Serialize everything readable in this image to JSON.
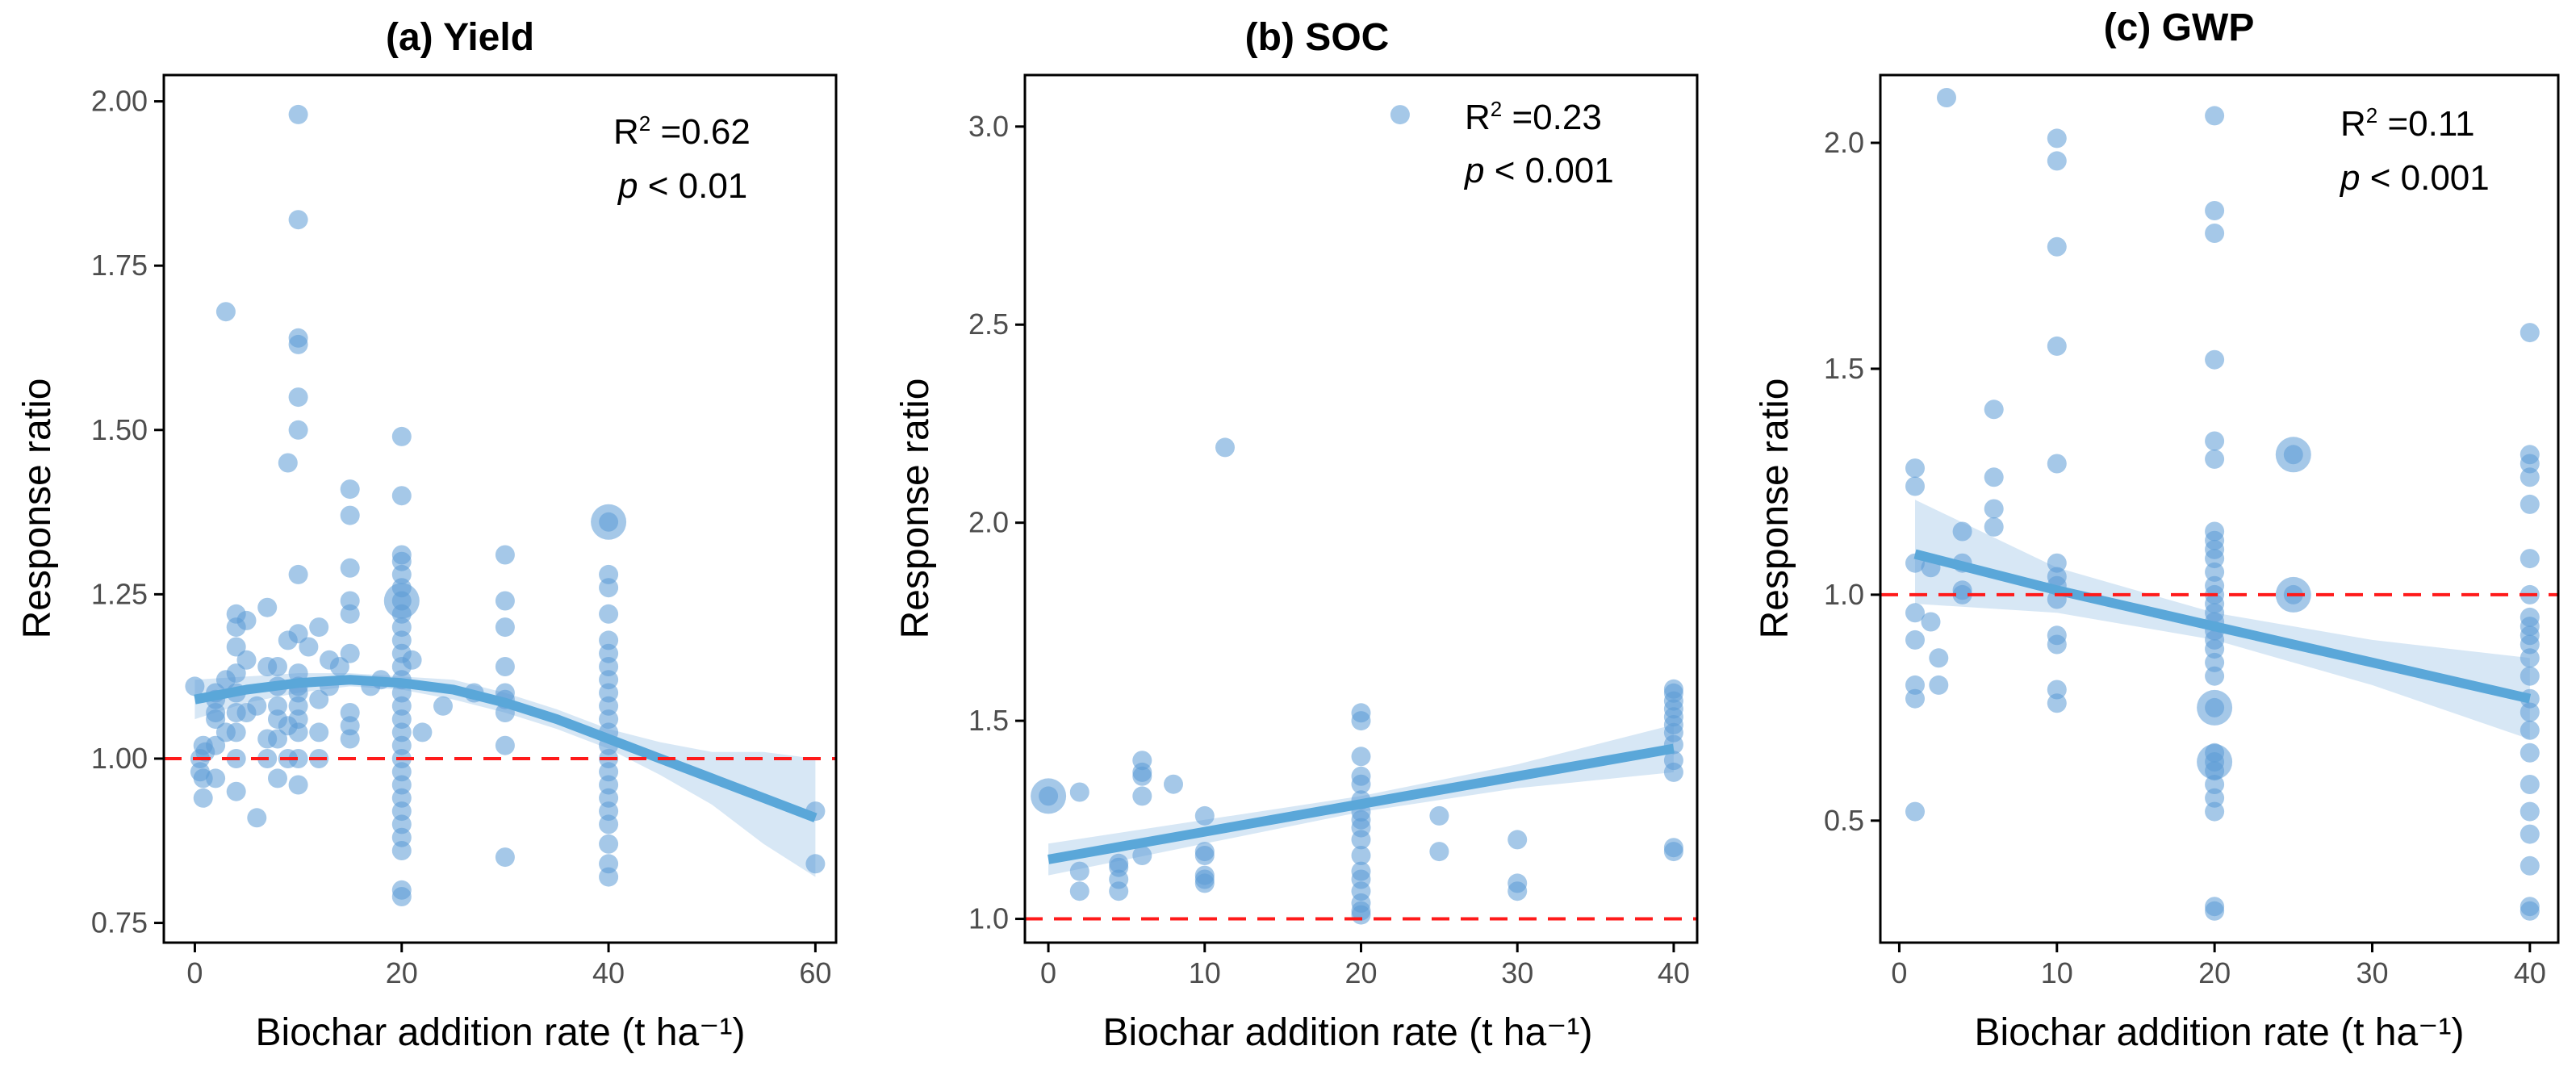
{
  "colors": {
    "point": "#5b9bd5",
    "fit_line": "#5aa7d9",
    "ci_band": "#bcd7ee",
    "reference_line": "#ff1a1a",
    "frame": "#000000"
  },
  "chart_data": [
    {
      "type": "scatter",
      "title": "(a) Yield",
      "xlabel": "Biochar addition rate (t ha⁻¹)",
      "ylabel": "Response ratio",
      "xlim": [
        -3,
        62
      ],
      "ylim": [
        0.72,
        2.04
      ],
      "xticks": [
        0,
        20,
        40,
        60
      ],
      "xtick_labels": [
        "0",
        "20",
        "40",
        "60"
      ],
      "yticks": [
        0.75,
        1.0,
        1.25,
        1.5,
        1.75,
        2.0
      ],
      "ytick_labels": [
        "0.75",
        "1.00",
        "1.25",
        "1.50",
        "1.75",
        "2.00"
      ],
      "reference_line": 1.0,
      "stats": {
        "r2_prefix": "R",
        "r2_sup": "2",
        "r2_value": " =0.62",
        "p_symbol": "p",
        "p_value": " < 0.01"
      },
      "fit": {
        "x": [
          0,
          5,
          10,
          15,
          20,
          25,
          30,
          35,
          40,
          45,
          50,
          55,
          60
        ],
        "y": [
          1.09,
          1.105,
          1.115,
          1.12,
          1.115,
          1.105,
          1.085,
          1.06,
          1.03,
          1.0,
          0.97,
          0.94,
          0.91
        ],
        "ci_low": [
          1.06,
          1.085,
          1.1,
          1.11,
          1.105,
          1.09,
          1.07,
          1.045,
          1.015,
          0.975,
          0.93,
          0.87,
          0.82
        ],
        "ci_high": [
          1.12,
          1.125,
          1.13,
          1.13,
          1.125,
          1.12,
          1.1,
          1.075,
          1.045,
          1.025,
          1.01,
          1.01,
          1.0
        ]
      },
      "points": [
        [
          0,
          1.11
        ],
        [
          0.5,
          1.0
        ],
        [
          0.5,
          0.98
        ],
        [
          0.8,
          1.02
        ],
        [
          0.8,
          0.97
        ],
        [
          0.8,
          0.94
        ],
        [
          1,
          1.01
        ],
        [
          2,
          1.1
        ],
        [
          2,
          1.07
        ],
        [
          2,
          1.09
        ],
        [
          2,
          1.06
        ],
        [
          2,
          1.02
        ],
        [
          2,
          0.97
        ],
        [
          3,
          1.68
        ],
        [
          3,
          1.12
        ],
        [
          3,
          1.04
        ],
        [
          4,
          1.22
        ],
        [
          4,
          1.2
        ],
        [
          4,
          1.17
        ],
        [
          4,
          1.13
        ],
        [
          4,
          1.1
        ],
        [
          4,
          1.07
        ],
        [
          4,
          1.04
        ],
        [
          4,
          1.0
        ],
        [
          4,
          0.95
        ],
        [
          5,
          1.21
        ],
        [
          5,
          1.15
        ],
        [
          5,
          1.07
        ],
        [
          6,
          0.91
        ],
        [
          6,
          1.08
        ],
        [
          7,
          1.23
        ],
        [
          7,
          1.14
        ],
        [
          7,
          1.03
        ],
        [
          7,
          1.0
        ],
        [
          8,
          1.14
        ],
        [
          8,
          1.11
        ],
        [
          8,
          1.08
        ],
        [
          8,
          1.06
        ],
        [
          8,
          1.03
        ],
        [
          8,
          0.97
        ],
        [
          9,
          1.45
        ],
        [
          9,
          1.18
        ],
        [
          9,
          1.05
        ],
        [
          9,
          1.0
        ],
        [
          10,
          1.98
        ],
        [
          10,
          1.82
        ],
        [
          10,
          1.64
        ],
        [
          10,
          1.63
        ],
        [
          10,
          1.55
        ],
        [
          10,
          1.5
        ],
        [
          10,
          1.28
        ],
        [
          10,
          1.19
        ],
        [
          10,
          1.13
        ],
        [
          10,
          1.11
        ],
        [
          10,
          1.1
        ],
        [
          10,
          1.08
        ],
        [
          10,
          1.06
        ],
        [
          10,
          1.04
        ],
        [
          10,
          1.0
        ],
        [
          10,
          0.96
        ],
        [
          11,
          1.17
        ],
        [
          12,
          1.2
        ],
        [
          12,
          1.09
        ],
        [
          12,
          1.04
        ],
        [
          12,
          1.0
        ],
        [
          13,
          1.15
        ],
        [
          13,
          1.11
        ],
        [
          14,
          1.14
        ],
        [
          15,
          1.41
        ],
        [
          15,
          1.37
        ],
        [
          15,
          1.29
        ],
        [
          15,
          1.24
        ],
        [
          15,
          1.22
        ],
        [
          15,
          1.16
        ],
        [
          15,
          1.07
        ],
        [
          15,
          1.05
        ],
        [
          15,
          1.03
        ],
        [
          17,
          1.11
        ],
        [
          18,
          1.12
        ],
        [
          20,
          1.49
        ],
        [
          20,
          1.4
        ],
        [
          20,
          1.31
        ],
        [
          20,
          1.3
        ],
        [
          20,
          1.28
        ],
        [
          20,
          1.26
        ],
        [
          20,
          1.24
        ],
        [
          20,
          1.22
        ],
        [
          20,
          1.2
        ],
        [
          20,
          1.18
        ],
        [
          20,
          1.16
        ],
        [
          20,
          1.14
        ],
        [
          20,
          1.12
        ],
        [
          20,
          1.1
        ],
        [
          20,
          1.08
        ],
        [
          20,
          1.06
        ],
        [
          20,
          1.04
        ],
        [
          20,
          1.02
        ],
        [
          20,
          1.0
        ],
        [
          20,
          0.98
        ],
        [
          20,
          0.96
        ],
        [
          20,
          0.94
        ],
        [
          20,
          0.92
        ],
        [
          20,
          0.9
        ],
        [
          20,
          0.88
        ],
        [
          20,
          0.86
        ],
        [
          20,
          0.8
        ],
        [
          20,
          0.79
        ],
        [
          21,
          1.15
        ],
        [
          22,
          1.04
        ],
        [
          24,
          1.08
        ],
        [
          27,
          1.1
        ],
        [
          30,
          1.31
        ],
        [
          30,
          1.24
        ],
        [
          30,
          1.2
        ],
        [
          30,
          1.14
        ],
        [
          30,
          1.1
        ],
        [
          30,
          1.09
        ],
        [
          30,
          1.07
        ],
        [
          30,
          1.02
        ],
        [
          30,
          0.85
        ],
        [
          40,
          1.36
        ],
        [
          40,
          1.28
        ],
        [
          40,
          1.26
        ],
        [
          40,
          1.22
        ],
        [
          40,
          1.18
        ],
        [
          40,
          1.16
        ],
        [
          40,
          1.14
        ],
        [
          40,
          1.12
        ],
        [
          40,
          1.1
        ],
        [
          40,
          1.08
        ],
        [
          40,
          1.06
        ],
        [
          40,
          1.04
        ],
        [
          40,
          1.02
        ],
        [
          40,
          1.0
        ],
        [
          40,
          0.98
        ],
        [
          40,
          0.96
        ],
        [
          40,
          0.94
        ],
        [
          40,
          0.92
        ],
        [
          40,
          0.9
        ],
        [
          40,
          0.87
        ],
        [
          40,
          0.84
        ],
        [
          40,
          0.82
        ],
        [
          60,
          0.92
        ],
        [
          60,
          0.84
        ]
      ],
      "big_points": [
        [
          20,
          1.24
        ],
        [
          40,
          1.36
        ]
      ]
    },
    {
      "type": "scatter",
      "title": "(b) SOC",
      "xlabel": "Biochar addition rate (t ha⁻¹)",
      "ylabel": "Response ratio",
      "xlim": [
        -1.5,
        41.5
      ],
      "ylim": [
        0.94,
        3.13
      ],
      "xticks": [
        0,
        10,
        20,
        30,
        40
      ],
      "xtick_labels": [
        "0",
        "10",
        "20",
        "30",
        "40"
      ],
      "yticks": [
        1.0,
        1.5,
        2.0,
        2.5,
        3.0
      ],
      "ytick_labels": [
        "1.0",
        "1.5",
        "2.0",
        "2.5",
        "3.0"
      ],
      "reference_line": 1.0,
      "stats": {
        "r2_prefix": "R",
        "r2_sup": "2",
        "r2_value": " =0.23",
        "p_symbol": "p",
        "p_value": " < 0.001"
      },
      "fit": {
        "x": [
          0,
          10,
          20,
          30,
          40
        ],
        "y": [
          1.15,
          1.22,
          1.29,
          1.36,
          1.43
        ],
        "ci_low": [
          1.11,
          1.19,
          1.27,
          1.33,
          1.37
        ],
        "ci_high": [
          1.19,
          1.25,
          1.31,
          1.39,
          1.49
        ]
      },
      "points": [
        [
          0,
          1.31
        ],
        [
          2,
          1.32
        ],
        [
          2,
          1.12
        ],
        [
          2,
          1.07
        ],
        [
          4.5,
          1.14
        ],
        [
          4.5,
          1.13
        ],
        [
          4.5,
          1.1
        ],
        [
          4.5,
          1.07
        ],
        [
          6,
          1.4
        ],
        [
          6,
          1.37
        ],
        [
          6,
          1.36
        ],
        [
          6,
          1.31
        ],
        [
          6,
          1.16
        ],
        [
          8,
          1.34
        ],
        [
          10,
          1.26
        ],
        [
          10,
          1.17
        ],
        [
          10,
          1.16
        ],
        [
          10,
          1.11
        ],
        [
          10,
          1.1
        ],
        [
          10,
          1.09
        ],
        [
          11.3,
          2.19
        ],
        [
          20,
          1.52
        ],
        [
          20,
          1.5
        ],
        [
          20,
          1.41
        ],
        [
          20,
          1.36
        ],
        [
          20,
          1.34
        ],
        [
          20,
          1.3
        ],
        [
          20,
          1.27
        ],
        [
          20,
          1.25
        ],
        [
          20,
          1.23
        ],
        [
          20,
          1.2
        ],
        [
          20,
          1.16
        ],
        [
          20,
          1.12
        ],
        [
          20,
          1.1
        ],
        [
          20,
          1.07
        ],
        [
          20,
          1.04
        ],
        [
          20,
          1.02
        ],
        [
          20,
          1.01
        ],
        [
          22.5,
          3.03
        ],
        [
          25,
          1.26
        ],
        [
          25,
          1.17
        ],
        [
          30,
          1.2
        ],
        [
          30,
          1.09
        ],
        [
          30,
          1.07
        ],
        [
          40,
          1.58
        ],
        [
          40,
          1.57
        ],
        [
          40,
          1.55
        ],
        [
          40,
          1.53
        ],
        [
          40,
          1.51
        ],
        [
          40,
          1.49
        ],
        [
          40,
          1.47
        ],
        [
          40,
          1.44
        ],
        [
          40,
          1.4
        ],
        [
          40,
          1.37
        ],
        [
          40,
          1.18
        ],
        [
          40,
          1.17
        ]
      ],
      "big_points": [
        [
          0,
          1.31
        ]
      ]
    },
    {
      "type": "scatter",
      "title": "(c) GWP",
      "xlabel": "Biochar addition rate (t ha⁻¹)",
      "ylabel": "Response ratio",
      "xlim": [
        -1.2,
        41.8
      ],
      "ylim": [
        0.23,
        2.15
      ],
      "xticks": [
        0,
        10,
        20,
        30,
        40
      ],
      "xtick_labels": [
        "0",
        "10",
        "20",
        "30",
        "40"
      ],
      "yticks": [
        0.5,
        1.0,
        1.5,
        2.0
      ],
      "ytick_labels": [
        "0.5",
        "1.0",
        "1.5",
        "2.0"
      ],
      "reference_line": 1.0,
      "stats": {
        "r2_prefix": "R",
        "r2_sup": "2",
        "r2_value": " =0.11",
        "p_symbol": "p",
        "p_value": " < 0.001"
      },
      "fit": {
        "x": [
          1,
          10,
          20,
          30,
          40
        ],
        "y": [
          1.09,
          1.01,
          0.93,
          0.85,
          0.77
        ],
        "ci_low": [
          0.98,
          0.96,
          0.9,
          0.8,
          0.68
        ],
        "ci_high": [
          1.21,
          1.06,
          0.96,
          0.9,
          0.86
        ]
      },
      "points": [
        [
          1,
          1.28
        ],
        [
          1,
          1.24
        ],
        [
          1,
          1.07
        ],
        [
          1,
          0.96
        ],
        [
          1,
          0.9
        ],
        [
          1,
          0.8
        ],
        [
          1,
          0.77
        ],
        [
          1,
          0.52
        ],
        [
          2,
          0.94
        ],
        [
          2,
          1.06
        ],
        [
          2.5,
          0.86
        ],
        [
          2.5,
          0.8
        ],
        [
          3,
          2.1
        ],
        [
          4,
          1.14
        ],
        [
          4,
          1.07
        ],
        [
          4,
          1.0
        ],
        [
          4,
          1.01
        ],
        [
          6,
          1.41
        ],
        [
          6,
          1.26
        ],
        [
          6,
          1.19
        ],
        [
          6,
          1.15
        ],
        [
          10,
          2.01
        ],
        [
          10,
          1.96
        ],
        [
          10,
          1.77
        ],
        [
          10,
          1.55
        ],
        [
          10,
          1.29
        ],
        [
          10,
          1.07
        ],
        [
          10,
          1.04
        ],
        [
          10,
          1.02
        ],
        [
          10,
          0.99
        ],
        [
          10,
          0.91
        ],
        [
          10,
          0.89
        ],
        [
          10,
          0.79
        ],
        [
          10,
          0.76
        ],
        [
          20,
          2.06
        ],
        [
          20,
          1.85
        ],
        [
          20,
          1.8
        ],
        [
          20,
          1.52
        ],
        [
          20,
          1.34
        ],
        [
          20,
          1.3
        ],
        [
          20,
          1.14
        ],
        [
          20,
          1.12
        ],
        [
          20,
          1.1
        ],
        [
          20,
          1.08
        ],
        [
          20,
          1.05
        ],
        [
          20,
          1.02
        ],
        [
          20,
          1.0
        ],
        [
          20,
          0.98
        ],
        [
          20,
          0.96
        ],
        [
          20,
          0.94
        ],
        [
          20,
          0.92
        ],
        [
          20,
          0.9
        ],
        [
          20,
          0.88
        ],
        [
          20,
          0.85
        ],
        [
          20,
          0.82
        ],
        [
          20,
          0.75
        ],
        [
          20,
          0.65
        ],
        [
          20,
          0.63
        ],
        [
          20,
          0.61
        ],
        [
          20,
          0.58
        ],
        [
          20,
          0.55
        ],
        [
          20,
          0.52
        ],
        [
          20,
          0.31
        ],
        [
          20,
          0.3
        ],
        [
          25,
          1.31
        ],
        [
          25,
          1.0
        ],
        [
          40,
          1.58
        ],
        [
          40,
          1.31
        ],
        [
          40,
          1.29
        ],
        [
          40,
          1.26
        ],
        [
          40,
          1.2
        ],
        [
          40,
          1.08
        ],
        [
          40,
          1.0
        ],
        [
          40,
          0.95
        ],
        [
          40,
          0.93
        ],
        [
          40,
          0.91
        ],
        [
          40,
          0.89
        ],
        [
          40,
          0.86
        ],
        [
          40,
          0.82
        ],
        [
          40,
          0.77
        ],
        [
          40,
          0.74
        ],
        [
          40,
          0.7
        ],
        [
          40,
          0.65
        ],
        [
          40,
          0.58
        ],
        [
          40,
          0.52
        ],
        [
          40,
          0.47
        ],
        [
          40,
          0.4
        ],
        [
          40,
          0.31
        ],
        [
          40,
          0.3
        ]
      ],
      "big_points": [
        [
          20,
          0.75
        ],
        [
          20,
          0.63
        ],
        [
          25,
          1.31
        ],
        [
          25,
          1.0
        ]
      ]
    }
  ]
}
